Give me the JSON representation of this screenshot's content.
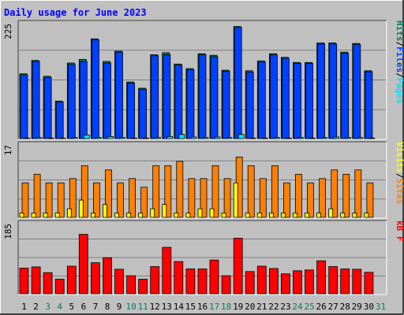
{
  "chart_data": {
    "type": "bar",
    "title": "Daily usage for June 2023",
    "categories": [
      "1",
      "2",
      "3",
      "4",
      "5",
      "6",
      "7",
      "8",
      "9",
      "10",
      "11",
      "12",
      "13",
      "14",
      "15",
      "16",
      "17",
      "18",
      "19",
      "20",
      "21",
      "22",
      "23",
      "24",
      "25",
      "26",
      "27",
      "28",
      "29",
      "30",
      "31"
    ],
    "weekend_days": [
      "3",
      "4",
      "10",
      "11",
      "17",
      "18",
      "24",
      "25",
      "31"
    ],
    "panels": [
      {
        "id": "hits-files-pages",
        "ymax": 225,
        "ymax_label": "225",
        "side_labels": [
          "Pages",
          "/",
          "Files",
          "/",
          "Hits"
        ],
        "series": [
          {
            "name": "Hits",
            "values": [
              126,
              152,
              121,
              73,
              147,
              154,
              194,
              150,
              170,
              110,
              98,
              163,
              167,
              145,
              136,
              165,
              162,
              133,
              218,
              132,
              151,
              165,
              158,
              148,
              148,
              186,
              186,
              168,
              185,
              132,
              0
            ]
          },
          {
            "name": "Files",
            "values": [
              124,
              150,
              119,
              71,
              144,
              150,
              192,
              147,
              168,
              108,
              96,
              161,
              163,
              143,
              134,
              163,
              159,
              131,
              216,
              129,
              149,
              163,
              156,
              146,
              146,
              184,
              184,
              166,
              183,
              130,
              0
            ]
          },
          {
            "name": "Pages",
            "values": [
              1,
              2,
              1,
              1,
              2,
              7,
              2,
              4,
              2,
              1,
              1,
              2,
              4,
              8,
              3,
              2,
              3,
              2,
              8,
              1,
              1,
              2,
              1,
              2,
              1,
              2,
              3,
              2,
              2,
              1,
              0
            ]
          }
        ]
      },
      {
        "id": "visits-sites",
        "ymax": 17,
        "ymax_label": "17",
        "side_labels": [
          "Sites",
          "/",
          "Visits"
        ],
        "series": [
          {
            "name": "Visits",
            "values": [
              8,
              10,
              8,
              8,
              9,
              12,
              8,
              11,
              8,
              9,
              7,
              12,
              12,
              13,
              9,
              9,
              12,
              9,
              14,
              12,
              9,
              12,
              8,
              10,
              8,
              9,
              11,
              10,
              11,
              8,
              0
            ]
          },
          {
            "name": "Sites",
            "values": [
              1,
              1,
              1,
              1,
              2,
              4,
              1,
              3,
              1,
              1,
              1,
              2,
              3,
              1,
              1,
              2,
              2,
              1,
              8,
              1,
              1,
              1,
              1,
              1,
              1,
              1,
              2,
              1,
              1,
              1,
              0
            ]
          }
        ]
      },
      {
        "id": "kbytes",
        "ymax": 185,
        "ymax_label": "185",
        "side_labels": [
          "kB F"
        ],
        "series": [
          {
            "name": "kB F",
            "values": [
              67,
              70,
              55,
              38,
              72,
              155,
              81,
              94,
              64,
              47,
              38,
              71,
              121,
              84,
              65,
              65,
              88,
              47,
              145,
              58,
              72,
              66,
              52,
              60,
              62,
              86,
              71,
              65,
              64,
              56,
              0
            ]
          }
        ]
      }
    ],
    "colors": {
      "background": "#c0c0c0",
      "title": "#0000ff",
      "hits": "#00805c",
      "files": "#0040ff",
      "pages": "#00e0ff",
      "visits": "#ff8000",
      "sites": "#ffff00",
      "kbytes": "#ff0000",
      "weekday_label": "#000000",
      "weekend_label": "#00805c",
      "gridline": "#808080"
    }
  }
}
